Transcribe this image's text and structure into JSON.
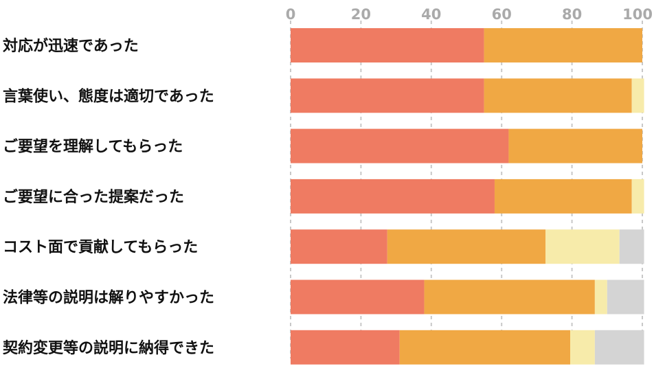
{
  "chart_data": {
    "type": "bar",
    "orientation": "horizontal",
    "stacked": true,
    "xlim": [
      0,
      100
    ],
    "x_ticks": [
      "0",
      "20",
      "40",
      "60",
      "80",
      "100"
    ],
    "grid": true,
    "categories": [
      "対応が迅速であった",
      "言葉使い、態度は適切であった",
      "ご要望を理解してもらった",
      "ご要望に合った提案だった",
      "コスト面で貢献してもらった",
      "法律等の説明は解りやすかった",
      "契約変更等の説明に納得できた"
    ],
    "series": [
      {
        "color": "#ef7b62",
        "values": [
          55,
          55,
          62,
          58,
          27.5,
          38,
          31
        ]
      },
      {
        "color": "#f0a844",
        "values": [
          45,
          42,
          38,
          39,
          45,
          48.5,
          48.5
        ]
      },
      {
        "color": "#f7ebaa",
        "values": [
          0,
          3.5,
          0,
          3.5,
          21,
          3.5,
          7
        ]
      },
      {
        "color": "#d4d4d4",
        "values": [
          0,
          0,
          0,
          0,
          7,
          10.5,
          14
        ]
      }
    ]
  }
}
